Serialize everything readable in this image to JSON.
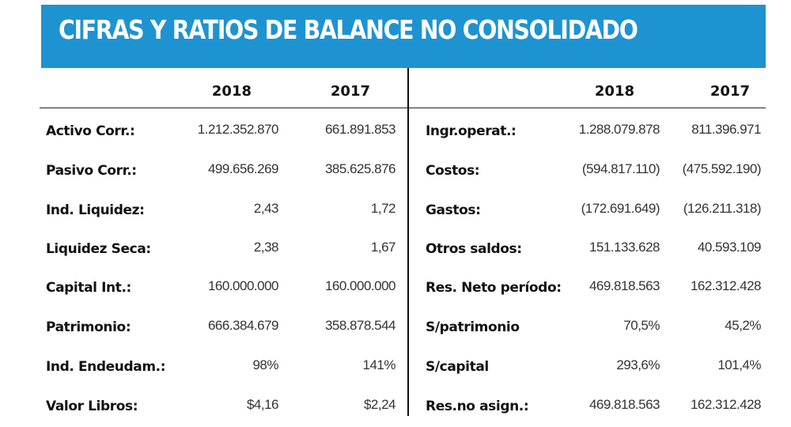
{
  "title": "CIFRAS Y RATIOS DE BALANCE NO CONSOLIDADO",
  "colors": {
    "banner": "#1e93d2",
    "title_text": "#ffffff"
  },
  "left_table": {
    "headers": [
      "2018",
      "2017"
    ],
    "rows": [
      {
        "label": "Activo Corr.:",
        "v2018": "1.212.352.870",
        "v2017": "661.891.853"
      },
      {
        "label": "Pasivo Corr.:",
        "v2018": "499.656.269",
        "v2017": "385.625.876"
      },
      {
        "label": "Ind. Liquidez:",
        "v2018": "2,43",
        "v2017": "1,72"
      },
      {
        "label": "Liquidez Seca:",
        "v2018": "2,38",
        "v2017": "1,67"
      },
      {
        "label": "Capital Int.:",
        "v2018": "160.000.000",
        "v2017": "160.000.000"
      },
      {
        "label": "Patrimonio:",
        "v2018": "666.384.679",
        "v2017": "358.878.544"
      },
      {
        "label": "Ind. Endeudam.:",
        "v2018": "98%",
        "v2017": "141%"
      },
      {
        "label": "Valor Libros:",
        "v2018": "$4,16",
        "v2017": "$2,24"
      }
    ]
  },
  "right_table": {
    "headers": [
      "2018",
      "2017"
    ],
    "rows": [
      {
        "label": "Ingr.operat.:",
        "v2018": "1.288.079.878",
        "v2017": "811.396.971"
      },
      {
        "label": "Costos:",
        "v2018": "(594.817.110)",
        "v2017": "(475.592.190)"
      },
      {
        "label": "Gastos:",
        "v2018": "(172.691.649)",
        "v2017": "(126.211.318)"
      },
      {
        "label": "Otros saldos:",
        "v2018": "151.133.628",
        "v2017": "40.593.109"
      },
      {
        "label": "Res. Neto período:",
        "v2018": "469.818.563",
        "v2017": "162.312.428"
      },
      {
        "label": "S/patrimonio",
        "v2018": "70,5%",
        "v2017": "45,2%"
      },
      {
        "label": "S/capital",
        "v2018": "293,6%",
        "v2017": "101,4%"
      },
      {
        "label": "Res.no asign.:",
        "v2018": "469.818.563",
        "v2017": "162.312.428"
      }
    ]
  }
}
